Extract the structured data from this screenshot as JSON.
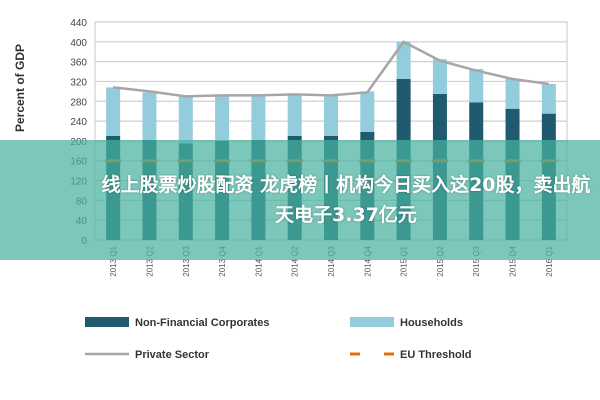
{
  "chart_data": {
    "type": "bar",
    "stacked": true,
    "title": "",
    "xlabel": "",
    "ylabel": "Percent of GDP",
    "ylim": [
      0,
      440
    ],
    "yticks": [
      0,
      40,
      80,
      120,
      160,
      200,
      240,
      280,
      320,
      360,
      400,
      440
    ],
    "grid": true,
    "legend_position": "bottom",
    "categories": [
      "2013 Q1",
      "2013 Q2",
      "2013 Q3",
      "2013 Q4",
      "2014 Q1",
      "2014 Q2",
      "2014 Q3",
      "2014 Q4",
      "2015 Q1",
      "2015 Q2",
      "2015 Q3",
      "2015 Q4",
      "2016 Q1"
    ],
    "series": [
      {
        "name": "Non-Financial Corporates",
        "kind": "bar",
        "color": "#1f5a6e",
        "values": [
          210,
          202,
          195,
          200,
          202,
          210,
          210,
          218,
          325,
          295,
          278,
          265,
          255
        ]
      },
      {
        "name": "Households",
        "kind": "bar",
        "color": "#93cddd",
        "values": [
          98,
          96,
          95,
          92,
          90,
          84,
          82,
          82,
          75,
          70,
          67,
          60,
          60
        ]
      },
      {
        "name": "Private Sector",
        "kind": "line",
        "color": "#a6a6a6",
        "values": [
          308,
          300,
          290,
          292,
          292,
          294,
          292,
          298,
          400,
          362,
          342,
          325,
          315
        ]
      },
      {
        "name": "EU Threshold",
        "kind": "dashed",
        "color": "#e46c0a",
        "values": [
          160,
          160,
          160,
          160,
          160,
          160,
          160,
          160,
          160,
          160,
          160,
          160,
          160
        ]
      }
    ]
  },
  "banner": {
    "text": "线上股票炒股配资 龙虎榜丨机构今日买入这20股，卖出航天电子3.37亿元"
  }
}
